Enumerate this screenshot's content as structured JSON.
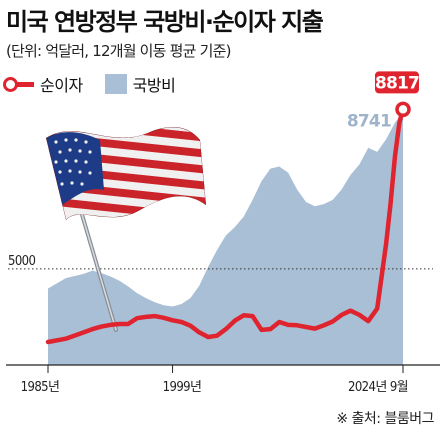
{
  "header": {
    "title": "미국 연방정부 국방비·순이자 지출",
    "subtitle": "(단위: 억달러, 12개월 이동 평균 기준)"
  },
  "legend": {
    "line_label": "순이자",
    "area_label": "국방비"
  },
  "source": "※ 출처: 블룸버그",
  "colors": {
    "interest_line": "#e0242f",
    "defense_area": "#a9bfd6",
    "defense_label": "#9fb4cb"
  },
  "chart_data": {
    "type": "area",
    "title": "미국 연방정부 국방비·순이자 지출",
    "subtitle": "(단위: 억달러, 12개월 이동 평균 기준)",
    "xlabel": "",
    "ylabel": "",
    "x_ticks": [
      "1985년",
      "1999년",
      "2024년 9월"
    ],
    "y_ticks": [
      5000
    ],
    "ylim": [
      2700,
      9400
    ],
    "xlim": [
      1985,
      2024.9
    ],
    "series": [
      {
        "name": "국방비",
        "type": "area",
        "end_label": "8741",
        "points": [
          [
            1985,
            4530
          ],
          [
            1987,
            4780
          ],
          [
            1989,
            4880
          ],
          [
            1990,
            4960
          ],
          [
            1991,
            4900
          ],
          [
            1992,
            4820
          ],
          [
            1993,
            4720
          ],
          [
            1994,
            4580
          ],
          [
            1995,
            4420
          ],
          [
            1996,
            4300
          ],
          [
            1997,
            4200
          ],
          [
            1998,
            4130
          ],
          [
            1999,
            4100
          ],
          [
            2000,
            4160
          ],
          [
            2001,
            4300
          ],
          [
            2002,
            4600
          ],
          [
            2003,
            5050
          ],
          [
            2004,
            5450
          ],
          [
            2005,
            5800
          ],
          [
            2006,
            6000
          ],
          [
            2007,
            6250
          ],
          [
            2008,
            6650
          ],
          [
            2009,
            7100
          ],
          [
            2010,
            7400
          ],
          [
            2011,
            7450
          ],
          [
            2012,
            7300
          ],
          [
            2013,
            6900
          ],
          [
            2014,
            6600
          ],
          [
            2015,
            6500
          ],
          [
            2016,
            6550
          ],
          [
            2017,
            6650
          ],
          [
            2018,
            6900
          ],
          [
            2019,
            7250
          ],
          [
            2020,
            7500
          ],
          [
            2021,
            7900
          ],
          [
            2022,
            7800
          ],
          [
            2023,
            8100
          ],
          [
            2024,
            8500
          ],
          [
            2024.9,
            8741
          ]
        ]
      },
      {
        "name": "순이자",
        "type": "line",
        "end_label": "8817",
        "points": [
          [
            1985,
            3250
          ],
          [
            1987,
            3330
          ],
          [
            1989,
            3480
          ],
          [
            1990,
            3560
          ],
          [
            1991,
            3620
          ],
          [
            1992,
            3660
          ],
          [
            1993,
            3680
          ],
          [
            1994,
            3680
          ],
          [
            1995,
            3820
          ],
          [
            1996,
            3850
          ],
          [
            1997,
            3870
          ],
          [
            1998,
            3830
          ],
          [
            1999,
            3770
          ],
          [
            2000,
            3730
          ],
          [
            2001,
            3640
          ],
          [
            2002,
            3480
          ],
          [
            2003,
            3370
          ],
          [
            2004,
            3400
          ],
          [
            2005,
            3560
          ],
          [
            2006,
            3760
          ],
          [
            2007,
            3890
          ],
          [
            2008,
            3870
          ],
          [
            2009,
            3540
          ],
          [
            2010,
            3560
          ],
          [
            2011,
            3730
          ],
          [
            2012,
            3660
          ],
          [
            2013,
            3650
          ],
          [
            2014,
            3610
          ],
          [
            2015,
            3570
          ],
          [
            2016,
            3650
          ],
          [
            2017,
            3740
          ],
          [
            2018,
            3900
          ],
          [
            2019,
            4000
          ],
          [
            2020,
            3900
          ],
          [
            2021,
            3750
          ],
          [
            2022,
            4050
          ],
          [
            2023,
            5600
          ],
          [
            2023.5,
            6550
          ],
          [
            2024,
            7700
          ],
          [
            2024.5,
            8500
          ],
          [
            2024.9,
            8817
          ]
        ]
      }
    ],
    "grid": false,
    "legend_position": "top-left"
  }
}
